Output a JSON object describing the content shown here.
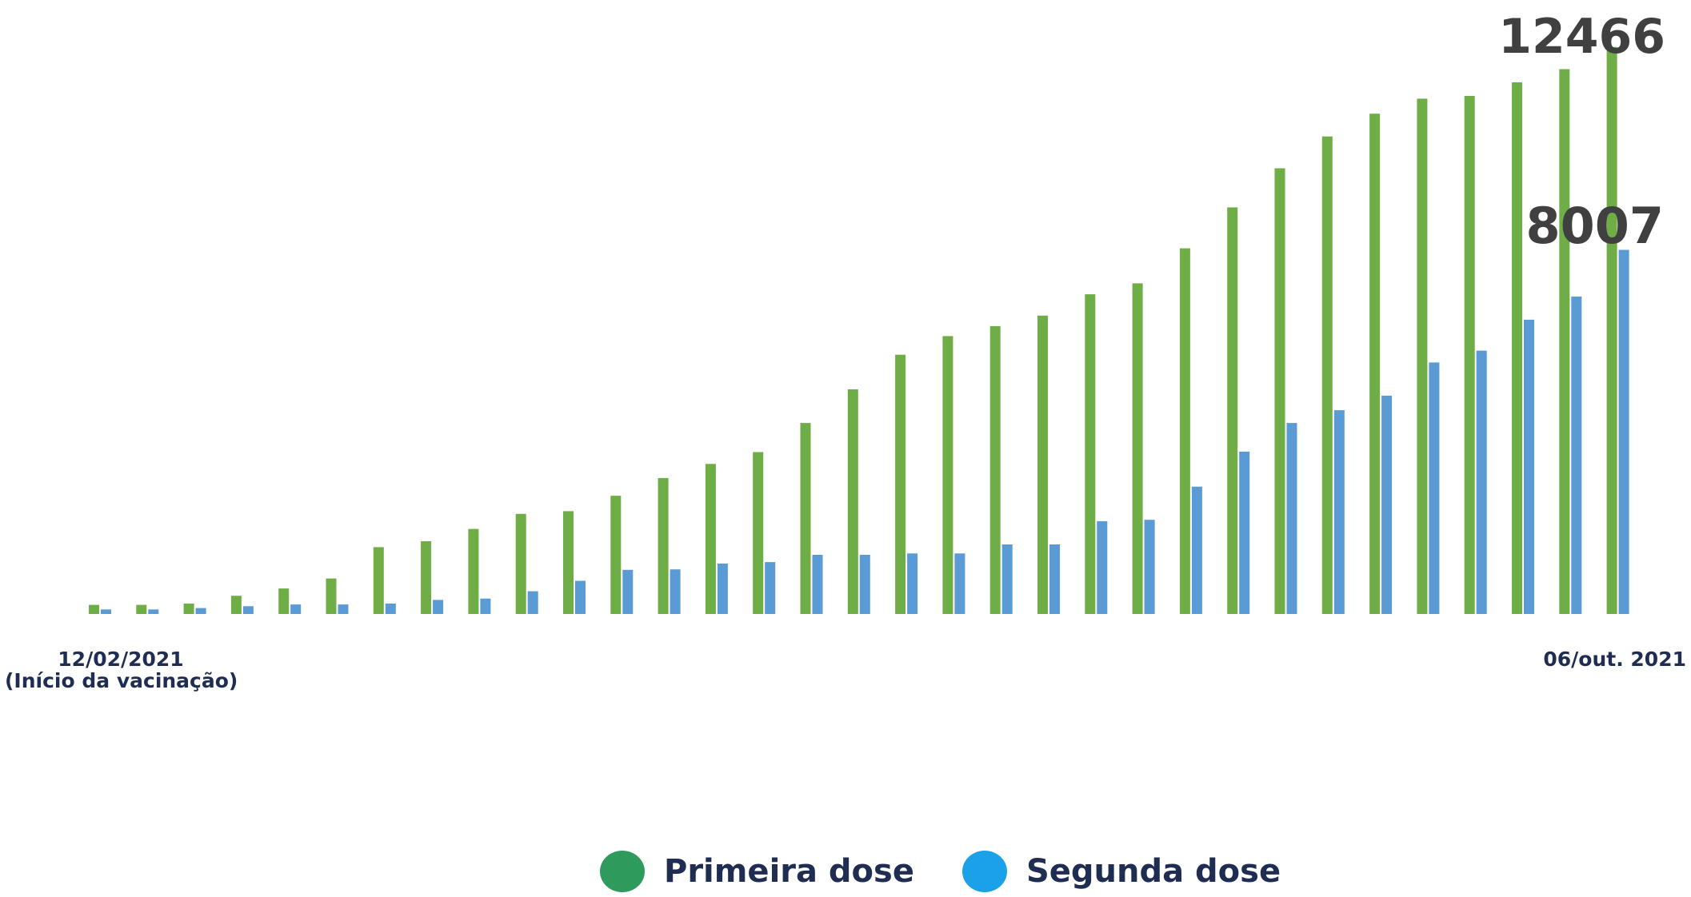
{
  "chart_data": {
    "type": "bar",
    "x_labels": {
      "start": "12/02/2021",
      "start_note": "(Início da vacinação)",
      "end": "06/out. 2021"
    },
    "annotations": {
      "first_dose_last": "12466",
      "second_dose_last": "8007"
    },
    "ylim": [
      0,
      13500
    ],
    "series": [
      {
        "name": "Primeira dose",
        "color": "#6fad47",
        "legend_color": "#2e9b5c",
        "values": [
          200,
          200,
          230,
          400,
          560,
          780,
          1470,
          1600,
          1870,
          2200,
          2260,
          2600,
          2990,
          3300,
          3560,
          4200,
          4940,
          5700,
          6110,
          6330,
          6560,
          7030,
          7270,
          8040,
          8940,
          9800,
          10500,
          11000,
          11330,
          11390,
          11690,
          11980,
          12466
        ]
      },
      {
        "name": "Segunda dose",
        "color": "#5b9bd5",
        "legend_color": "#1aa1e8",
        "values": [
          100,
          100,
          130,
          170,
          210,
          210,
          230,
          310,
          340,
          500,
          730,
          970,
          980,
          1110,
          1140,
          1300,
          1300,
          1330,
          1330,
          1530,
          1530,
          2040,
          2070,
          2800,
          3570,
          4200,
          4480,
          4800,
          5530,
          5790,
          6470,
          6980,
          8007
        ]
      }
    ],
    "legend": {
      "placement": "bottom-center"
    },
    "grid": false
  }
}
